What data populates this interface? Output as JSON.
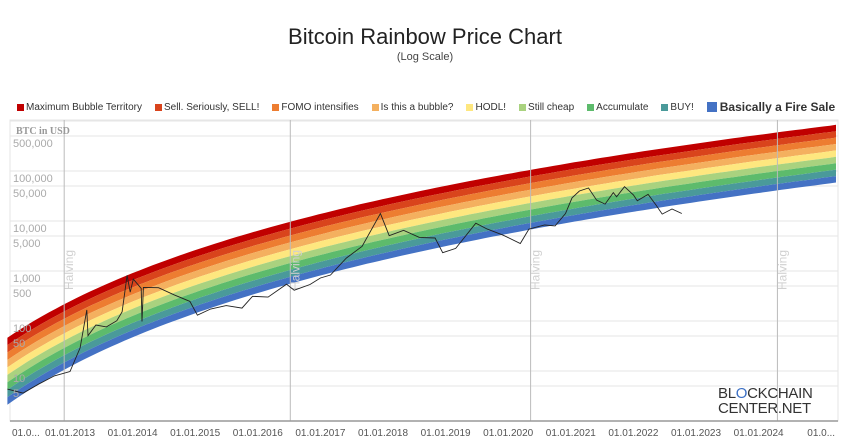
{
  "chart_data": {
    "type": "line",
    "title": "Bitcoin Rainbow Price Chart",
    "subtitle": "(Log Scale)",
    "ylabel": "BTC in USD",
    "y_scale": "log",
    "ylim": [
      1,
      1000000
    ],
    "xlim": [
      "2012-01-01",
      "2025-01-01"
    ],
    "grid": true,
    "legend_position": "top",
    "y_ticks": [
      500000,
      100000,
      50000,
      10000,
      5000,
      1000,
      500,
      100,
      50,
      10,
      5
    ],
    "y_tick_labels": [
      "500,000",
      "100,000",
      "50,000",
      "10,000",
      "5,000",
      "1,000",
      "500",
      "100",
      "50",
      "10",
      "5"
    ],
    "x_ticks": [
      "2012-01-01",
      "2013-01-01",
      "2014-01-01",
      "2015-01-01",
      "2016-01-01",
      "2017-01-01",
      "2018-01-01",
      "2019-01-01",
      "2020-01-01",
      "2021-01-01",
      "2022-01-01",
      "2023-01-01",
      "2024-01-01",
      "2025-01-01"
    ],
    "x_tick_labels": [
      "01.0...",
      "01.01.2013",
      "01.01.2014",
      "01.01.2015",
      "01.01.2016",
      "01.01.2017",
      "01.01.2018",
      "01.01.2019",
      "01.01.2020",
      "01.01.2021",
      "01.01.2022",
      "01.01.2023",
      "01.01.2024",
      "01.0..."
    ],
    "annotations": [
      {
        "date": "2012-11-28",
        "label": "Halving"
      },
      {
        "date": "2016-07-09",
        "label": "Halving"
      },
      {
        "date": "2020-05-11",
        "label": "Halving"
      },
      {
        "date": "2024-04-20",
        "label": "Halving"
      }
    ],
    "bands": [
      {
        "name": "Maximum Bubble Territory",
        "color": "#c00000"
      },
      {
        "name": "Sell. Seriously, SELL!",
        "color": "#d9441c"
      },
      {
        "name": "FOMO intensifies",
        "color": "#ed7d31"
      },
      {
        "name": "Is this a bubble?",
        "color": "#f4b05f"
      },
      {
        "name": "HODL!",
        "color": "#fee77f"
      },
      {
        "name": "Still cheap",
        "color": "#a9d27f"
      },
      {
        "name": "Accumulate",
        "color": "#5dbb6c"
      },
      {
        "name": "BUY!",
        "color": "#4a9a9a"
      },
      {
        "name": "Basically a Fire Sale",
        "color": "#4472c4"
      }
    ],
    "price_series": {
      "color": "#222222",
      "points": [
        [
          "2012-01-01",
          6
        ],
        [
          "2012-04-01",
          5
        ],
        [
          "2012-07-01",
          7.5
        ],
        [
          "2012-10-01",
          11
        ],
        [
          "2013-01-01",
          13.5
        ],
        [
          "2013-03-01",
          40
        ],
        [
          "2013-04-09",
          230
        ],
        [
          "2013-04-16",
          70
        ],
        [
          "2013-06-01",
          115
        ],
        [
          "2013-08-01",
          105
        ],
        [
          "2013-10-01",
          140
        ],
        [
          "2013-11-01",
          210
        ],
        [
          "2013-11-30",
          1130
        ],
        [
          "2013-12-18",
          520
        ],
        [
          "2014-01-05",
          950
        ],
        [
          "2014-02-20",
          620
        ],
        [
          "2014-02-25",
          135
        ],
        [
          "2014-03-05",
          650
        ],
        [
          "2014-06-01",
          640
        ],
        [
          "2014-09-01",
          460
        ],
        [
          "2014-12-01",
          340
        ],
        [
          "2015-01-14",
          180
        ],
        [
          "2015-04-01",
          240
        ],
        [
          "2015-07-01",
          280
        ],
        [
          "2015-10-01",
          250
        ],
        [
          "2015-12-01",
          430
        ],
        [
          "2016-03-01",
          415
        ],
        [
          "2016-06-17",
          750
        ],
        [
          "2016-08-01",
          570
        ],
        [
          "2016-11-01",
          740
        ],
        [
          "2017-01-01",
          1000
        ],
        [
          "2017-03-01",
          1150
        ],
        [
          "2017-06-01",
          2500
        ],
        [
          "2017-09-01",
          4300
        ],
        [
          "2017-12-17",
          19500
        ],
        [
          "2018-02-06",
          7000
        ],
        [
          "2018-05-01",
          9000
        ],
        [
          "2018-08-01",
          6500
        ],
        [
          "2018-11-01",
          6300
        ],
        [
          "2018-12-15",
          3200
        ],
        [
          "2019-03-01",
          3900
        ],
        [
          "2019-06-26",
          12500
        ],
        [
          "2019-09-01",
          9500
        ],
        [
          "2019-12-01",
          7200
        ],
        [
          "2020-03-12",
          4900
        ],
        [
          "2020-05-01",
          9500
        ],
        [
          "2020-08-01",
          11500
        ],
        [
          "2020-10-01",
          11000
        ],
        [
          "2020-12-01",
          19500
        ],
        [
          "2021-01-08",
          40000
        ],
        [
          "2021-02-20",
          55000
        ],
        [
          "2021-04-14",
          63000
        ],
        [
          "2021-06-01",
          36000
        ],
        [
          "2021-07-20",
          30000
        ],
        [
          "2021-09-06",
          51000
        ],
        [
          "2021-09-25",
          42000
        ],
        [
          "2021-11-10",
          67000
        ],
        [
          "2022-01-01",
          46000
        ],
        [
          "2022-01-24",
          35000
        ],
        [
          "2022-03-28",
          47000
        ],
        [
          "2022-05-12",
          29000
        ],
        [
          "2022-06-18",
          19000
        ],
        [
          "2022-08-14",
          24000
        ],
        [
          "2022-10-10",
          19500
        ]
      ]
    }
  },
  "watermark": {
    "line1a": "BL",
    "line1b": "O",
    "line1c": "CKCHAIN",
    "line2": "CENTER.NET"
  }
}
